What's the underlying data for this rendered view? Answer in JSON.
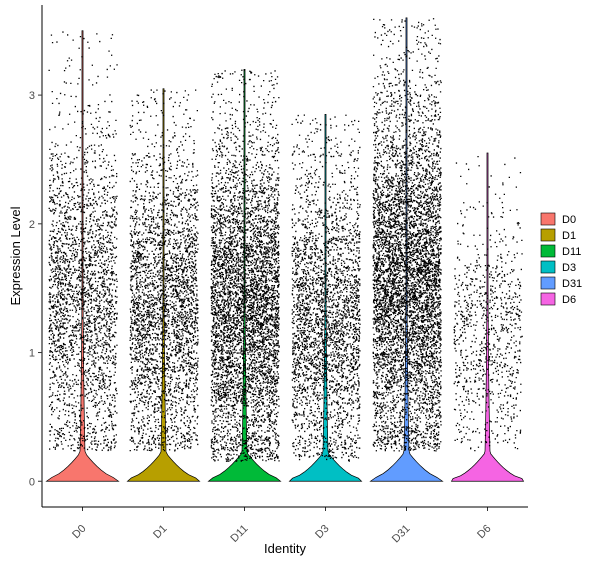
{
  "chart_data": {
    "type": "violin",
    "title": "",
    "xlabel": "Identity",
    "ylabel": "Expression Level",
    "ylim": [
      0,
      3.5
    ],
    "yticks": [
      0,
      1,
      2,
      3
    ],
    "grid": false,
    "legend_position": "right",
    "categories": [
      "D0",
      "D1",
      "D11",
      "D3",
      "D31",
      "D6"
    ],
    "colors": [
      "#F8766D",
      "#B79F00",
      "#00BA38",
      "#00BFC4",
      "#619CFF",
      "#F564E3"
    ],
    "series": [
      {
        "name": "D0",
        "max": 3.5,
        "mode_density": 0.22,
        "spread": [
          0.3,
          2.6
        ],
        "approx_points": 2600
      },
      {
        "name": "D1",
        "max": 3.05,
        "mode_density": 0.14,
        "spread": [
          0.3,
          2.4
        ],
        "approx_points": 3200
      },
      {
        "name": "D11",
        "max": 3.2,
        "mode_density": 0.18,
        "spread": [
          0.2,
          2.5
        ],
        "approx_points": 5200
      },
      {
        "name": "D3",
        "max": 2.85,
        "mode_density": 0.18,
        "spread": [
          0.2,
          2.3
        ],
        "approx_points": 3000
      },
      {
        "name": "D31",
        "max": 3.6,
        "mode_density": 0.18,
        "spread": [
          0.3,
          2.8
        ],
        "approx_points": 6000
      },
      {
        "name": "D6",
        "max": 2.55,
        "mode_density": 0.18,
        "spread": [
          0.3,
          2.0
        ],
        "approx_points": 900
      }
    ]
  }
}
